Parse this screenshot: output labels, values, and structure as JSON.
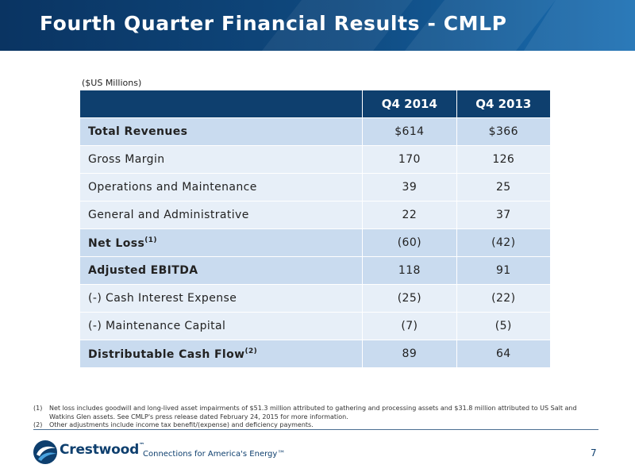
{
  "header": {
    "title": "Fourth Quarter Financial Results - CMLP"
  },
  "table": {
    "units": "($US Millions)",
    "columns": [
      "Q4 2014",
      "Q4 2013"
    ],
    "rows": [
      {
        "label": "Total Revenues",
        "q4_2014": "$614",
        "q4_2013": "$366"
      },
      {
        "label": "Gross Margin",
        "q4_2014": "170",
        "q4_2013": "126"
      },
      {
        "label": "Operations and Maintenance",
        "q4_2014": "39",
        "q4_2013": "25"
      },
      {
        "label": "General and Administrative",
        "q4_2014": "22",
        "q4_2013": "37"
      },
      {
        "label": "Net Loss",
        "note": "(1)",
        "q4_2014": "(60)",
        "q4_2013": "(42)"
      },
      {
        "label": "Adjusted EBITDA",
        "q4_2014": "118",
        "q4_2013": "91"
      },
      {
        "label": "(-) Cash Interest Expense",
        "q4_2014": "(25)",
        "q4_2013": "(22)"
      },
      {
        "label": "(-) Maintenance Capital",
        "q4_2014": "(7)",
        "q4_2013": "(5)"
      },
      {
        "label": "Distributable Cash Flow",
        "note": "(2)",
        "q4_2014": "89",
        "q4_2013": "64"
      }
    ]
  },
  "footnotes": [
    {
      "num": "(1)",
      "text": "Net loss includes goodwill and long-lived asset impairments of $51.3 million attributed to gathering and processing assets and $31.8 million attributed to US Salt and Watkins Glen assets. See CMLP's press release dated February 24, 2015 for more information."
    },
    {
      "num": "(2)",
      "text": "Other adjustments include income tax benefit/(expense) and deficiency payments."
    }
  ],
  "footer": {
    "logo_text": "Crestwood",
    "logo_tm": "™",
    "tagline": "Connections for America's Energy™",
    "page_number": "7"
  },
  "colors": {
    "header_bg": "#0b3a66",
    "table_header": "#0e3f6e",
    "row_dark": "#c9dbef",
    "row_light": "#e7eff8"
  }
}
